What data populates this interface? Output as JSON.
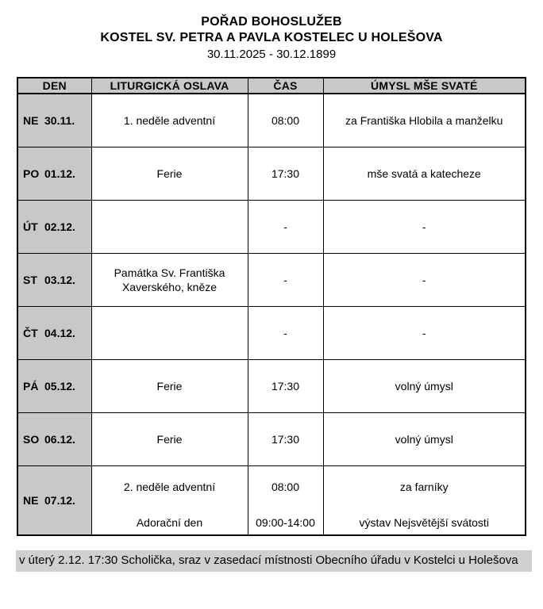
{
  "header": {
    "title": "POŘAD BOHOSLUŽEB",
    "subtitle": "KOSTEL SV. PETRA A PAVLA KOSTELEC U HOLEŠOVA",
    "date_range": "30.11.2025 - 30.12.1899"
  },
  "table": {
    "columns": {
      "day": "DEN",
      "celebration": "LITURGICKÁ OSLAVA",
      "time": "ČAS",
      "intention": "ÚMYSL MŠE SVATÉ"
    },
    "rows": [
      {
        "dow": "NE",
        "date": "30.11.",
        "celebration": "1. neděle adventní",
        "time": "08:00",
        "intention": "za Františka Hlobila a manželku"
      },
      {
        "dow": "PO",
        "date": "01.12.",
        "celebration": "Ferie",
        "time": "17:30",
        "intention": "mše svatá a katecheze"
      },
      {
        "dow": "ÚT",
        "date": "02.12.",
        "celebration": "",
        "time": "-",
        "intention": "-"
      },
      {
        "dow": "ST",
        "date": "03.12.",
        "celebration": "Památka Sv. Františka Xaverského, kněze",
        "time": "-",
        "intention": "-"
      },
      {
        "dow": "ČT",
        "date": "04.12.",
        "celebration": "",
        "time": "-",
        "intention": "-"
      },
      {
        "dow": "PÁ",
        "date": "05.12.",
        "celebration": "Ferie",
        "time": "17:30",
        "intention": "volný úmysl"
      },
      {
        "dow": "SO",
        "date": "06.12.",
        "celebration": "Ferie",
        "time": "17:30",
        "intention": "volný úmysl"
      },
      {
        "dow": "NE",
        "date": "07.12.",
        "celebration": "2. neděle adventní",
        "time": "08:00",
        "intention": "za farníky",
        "celebration2": "Adorační den",
        "time2": "09:00-14:00",
        "intention2": "výstav Nejsvětější svátosti"
      }
    ]
  },
  "footer": {
    "note": "v úterý 2.12. 17:30 Scholička, sraz v zasedací místnosti Obecního úřadu v Kostelci u Holešova"
  },
  "colors": {
    "cell_gray": "#c8c8c8",
    "footer_gray": "#d0d0d0",
    "border_black": "#000000"
  }
}
